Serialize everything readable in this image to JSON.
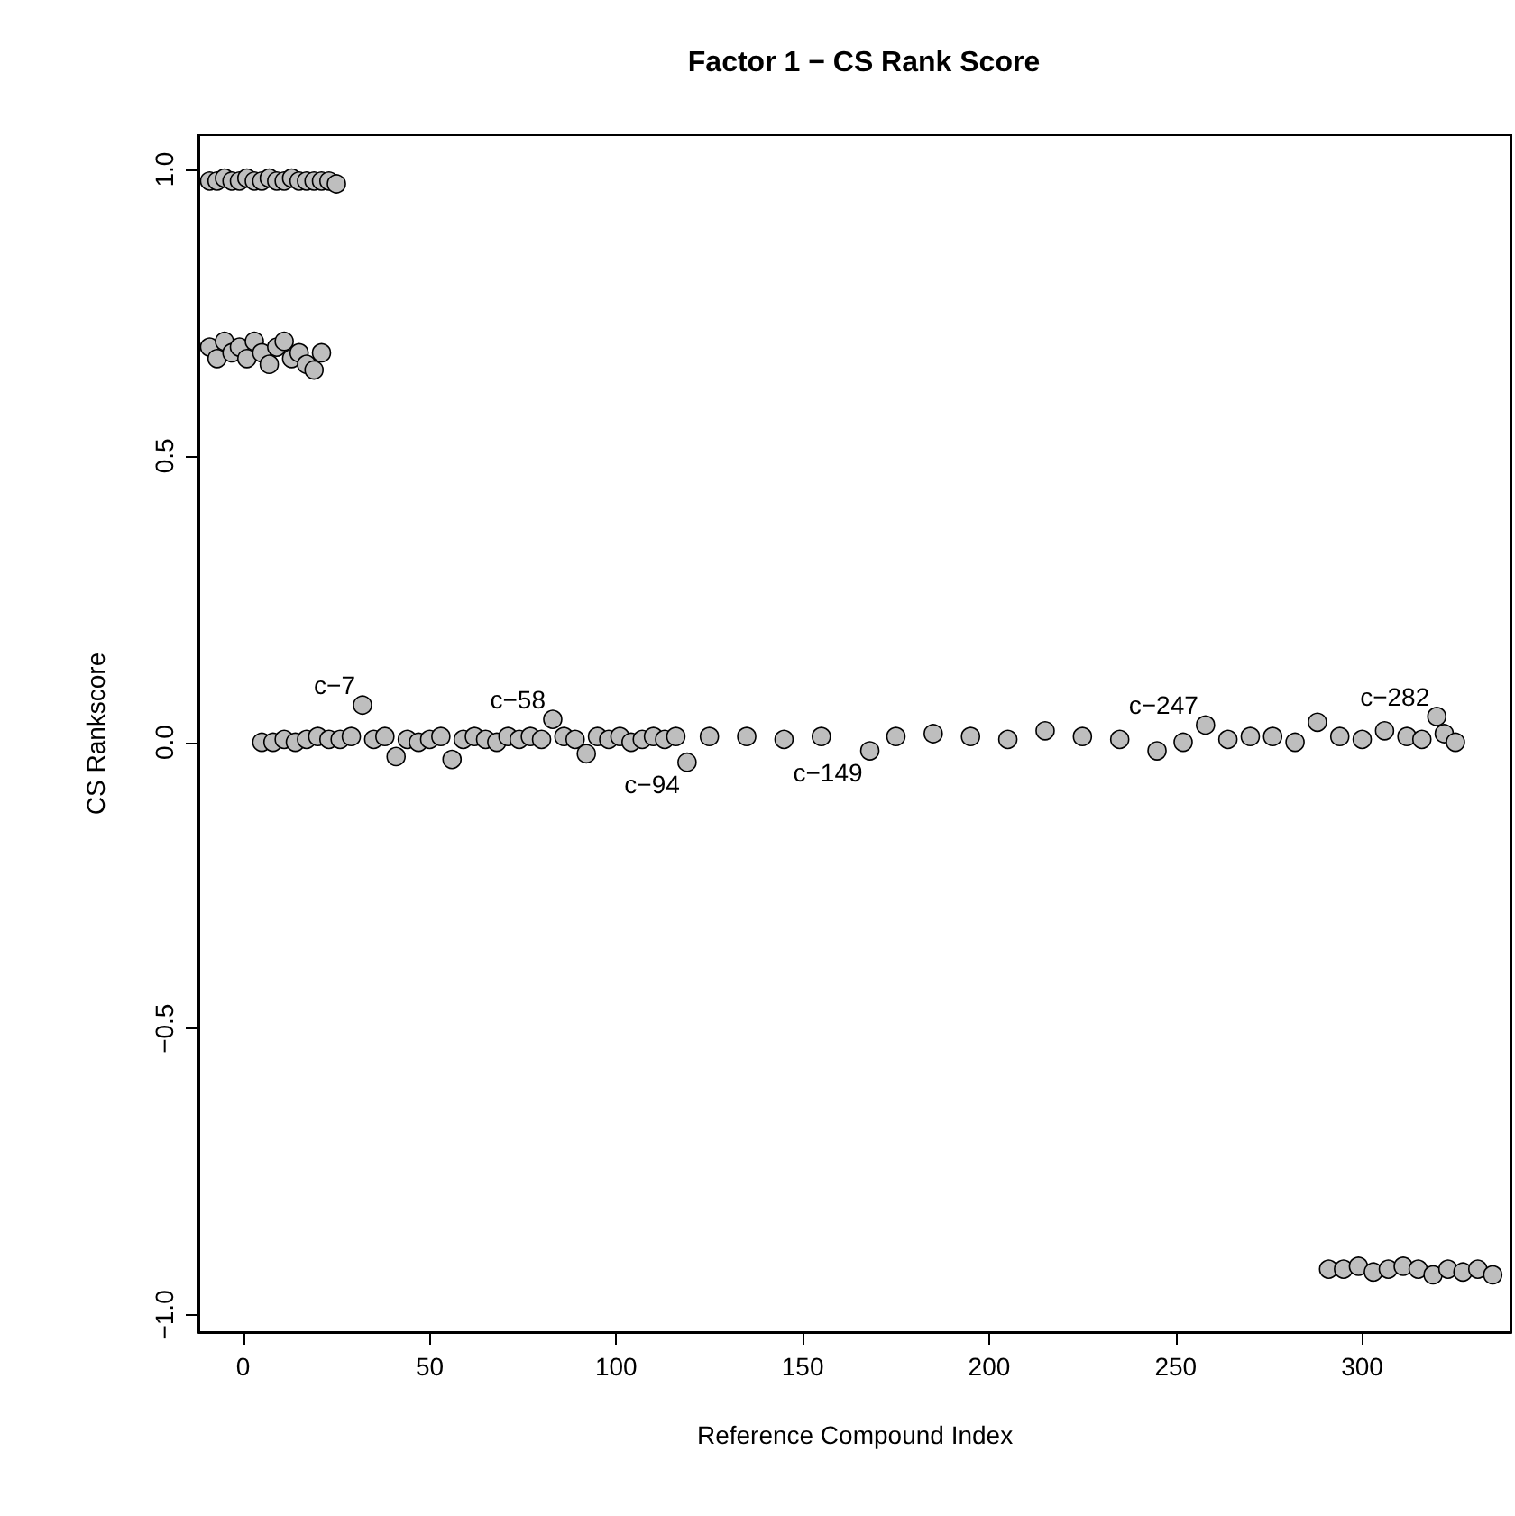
{
  "chart_data": {
    "type": "scatter",
    "title": "Factor 1 − CS Rank Score",
    "xlabel": "Reference Compound Index",
    "ylabel": "CS Rankscore",
    "x": [
      -9,
      -7,
      -5,
      -3,
      -1,
      1,
      3,
      5,
      7,
      9,
      11,
      13,
      15,
      17,
      19,
      21,
      23,
      25,
      -9,
      -7,
      -5,
      -3,
      -1,
      1,
      3,
      5,
      7,
      9,
      11,
      13,
      15,
      17,
      19,
      21,
      5,
      8,
      11,
      14,
      17,
      20,
      23,
      26,
      29,
      32,
      35,
      38,
      41,
      44,
      47,
      50,
      53,
      56,
      59,
      62,
      65,
      68,
      71,
      74,
      77,
      80,
      83,
      86,
      89,
      92,
      95,
      98,
      101,
      104,
      107,
      110,
      113,
      116,
      119,
      125,
      135,
      145,
      155,
      168,
      175,
      185,
      195,
      205,
      215,
      225,
      235,
      245,
      252,
      258,
      264,
      270,
      276,
      282,
      288,
      294,
      300,
      306,
      312,
      316,
      320,
      322,
      325,
      291,
      295,
      299,
      303,
      307,
      311,
      315,
      319,
      323,
      327,
      331,
      335
    ],
    "values": [
      0.98,
      0.98,
      0.985,
      0.98,
      0.98,
      0.985,
      0.98,
      0.98,
      0.985,
      0.98,
      0.98,
      0.985,
      0.98,
      0.98,
      0.98,
      0.98,
      0.98,
      0.975,
      0.69,
      0.67,
      0.7,
      0.68,
      0.69,
      0.67,
      0.7,
      0.68,
      0.66,
      0.69,
      0.7,
      0.67,
      0.68,
      0.66,
      0.65,
      0.68,
      0.0,
      0.0,
      0.005,
      0.0,
      0.005,
      0.01,
      0.005,
      0.005,
      0.01,
      0.065,
      0.005,
      0.01,
      -0.025,
      0.005,
      0.0,
      0.005,
      0.01,
      -0.03,
      0.005,
      0.01,
      0.005,
      0.0,
      0.01,
      0.005,
      0.01,
      0.005,
      0.04,
      0.01,
      0.005,
      -0.02,
      0.01,
      0.005,
      0.01,
      0.0,
      0.005,
      0.01,
      0.005,
      0.01,
      -0.035,
      0.01,
      0.01,
      0.005,
      0.01,
      -0.015,
      0.01,
      0.015,
      0.01,
      0.005,
      0.02,
      0.01,
      0.005,
      -0.015,
      0.0,
      0.03,
      0.005,
      0.01,
      0.01,
      0.0,
      0.035,
      0.01,
      0.005,
      0.02,
      0.01,
      0.005,
      0.045,
      0.015,
      0.0,
      -0.92,
      -0.92,
      -0.915,
      -0.925,
      -0.92,
      -0.915,
      -0.92,
      -0.93,
      -0.92,
      -0.925,
      -0.92,
      -0.93
    ],
    "color": "#bebebe",
    "marker": "circle",
    "grid": false,
    "xlim": [
      -12,
      340
    ],
    "xticks": [
      0,
      50,
      100,
      150,
      200,
      250,
      300
    ],
    "ylim": [
      -1.03,
      1.06
    ],
    "yticks": [
      {
        "value": -1,
        "label": "−1.0"
      },
      {
        "value": -0.5,
        "label": "−0.5"
      },
      {
        "value": 0,
        "label": "0.0"
      },
      {
        "value": 0.5,
        "label": "0.5"
      },
      {
        "value": 1,
        "label": "1.0"
      }
    ],
    "annotations": [
      {
        "text": "c−7",
        "x": 32,
        "y": 0.065
      },
      {
        "text": "c−58",
        "x": 83,
        "y": 0.04
      },
      {
        "text": "c−94",
        "x": 119,
        "y": -0.035
      },
      {
        "text": "c−149",
        "x": 168,
        "y": -0.015
      },
      {
        "text": "c−247",
        "x": 258,
        "y": 0.03
      },
      {
        "text": "c−282",
        "x": 320,
        "y": 0.045
      }
    ]
  }
}
